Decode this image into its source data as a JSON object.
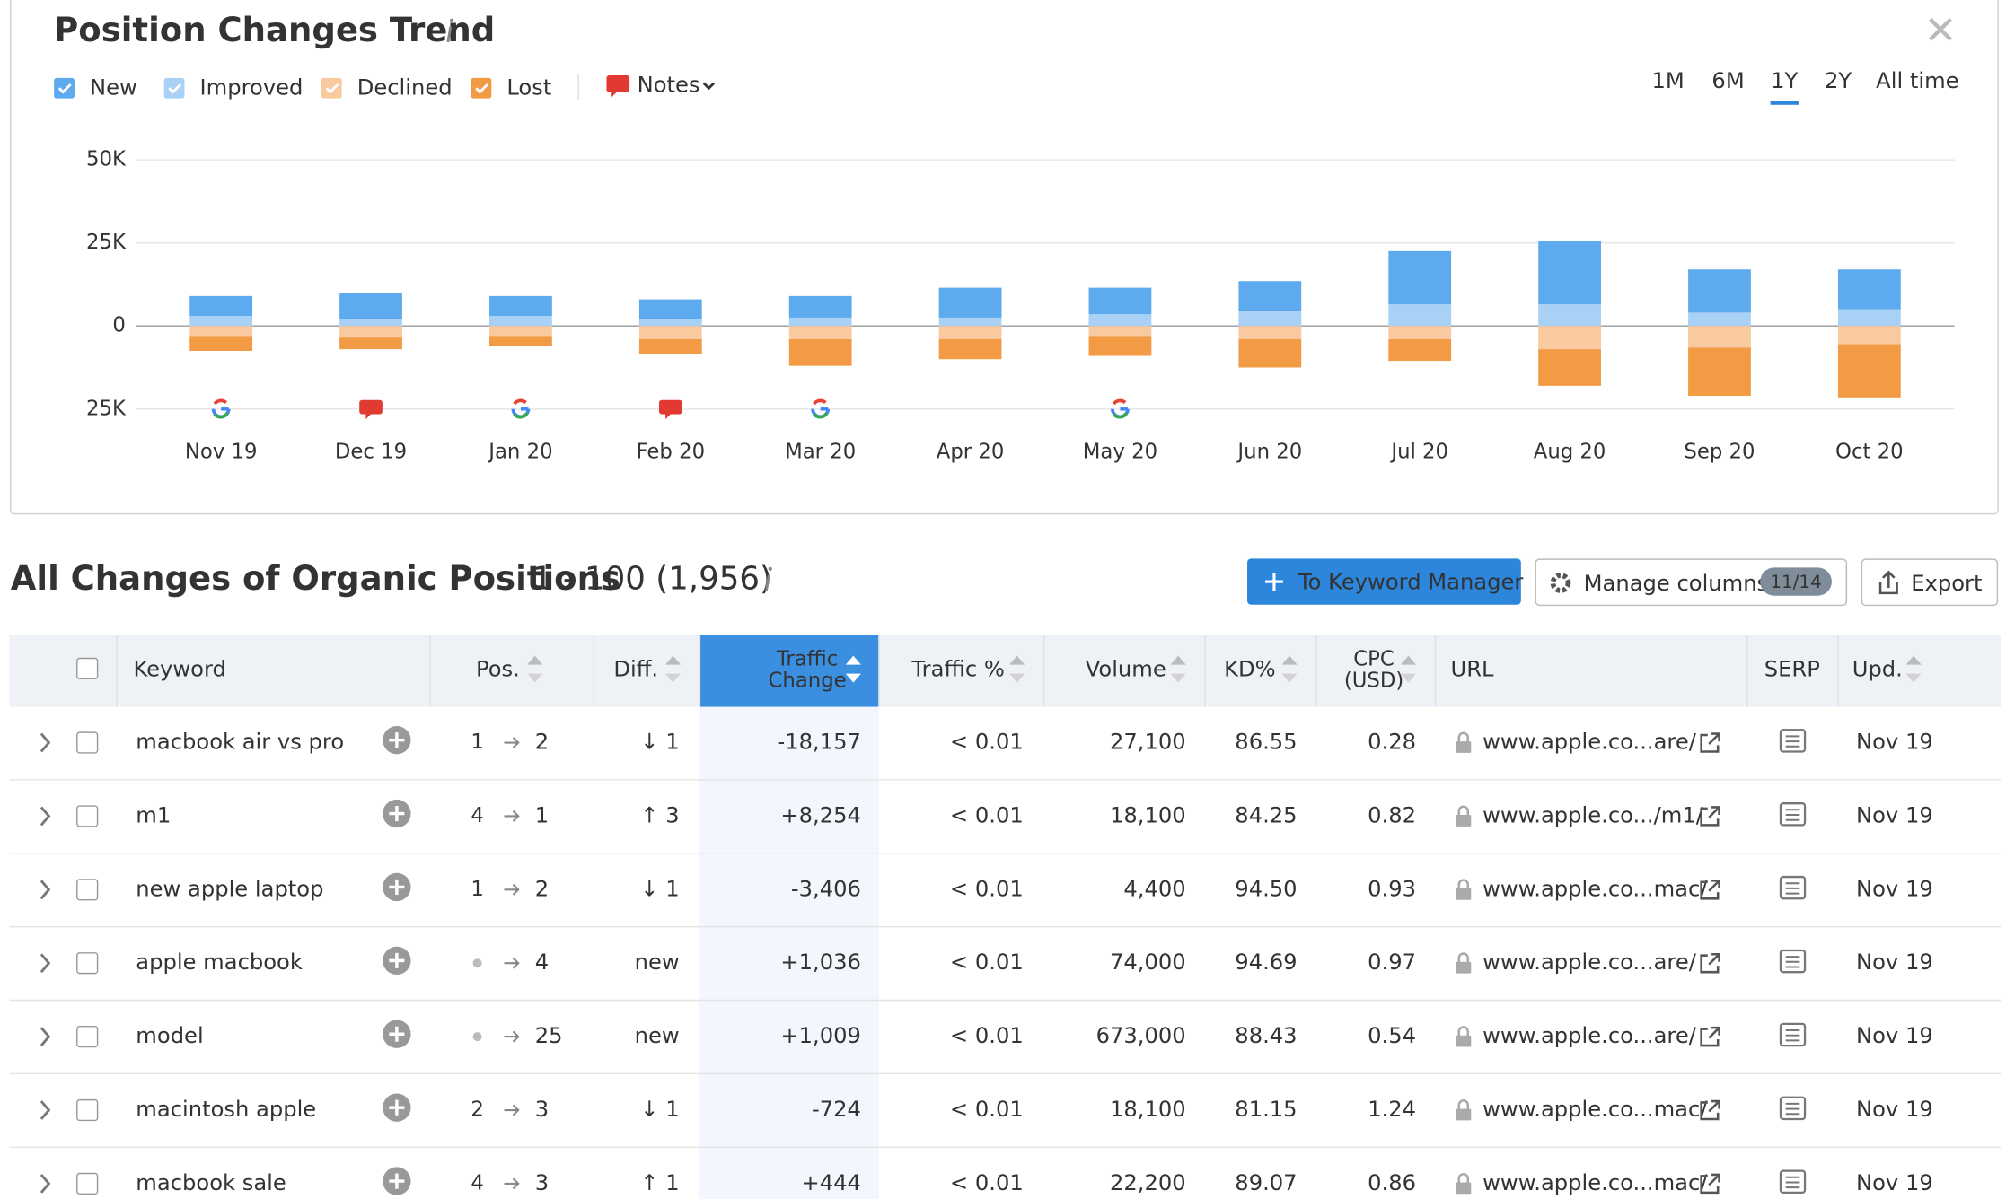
{
  "chart_data": {
    "type": "bar",
    "stacked": true,
    "title": "Position Changes Trend",
    "categories": [
      "Nov 19",
      "Dec 19",
      "Jan 20",
      "Feb 20",
      "Mar 20",
      "Apr 20",
      "May 20",
      "Jun 20",
      "Jul 20",
      "Aug 20",
      "Sep 20",
      "Oct 20"
    ],
    "series": [
      {
        "name": "New",
        "color": "#5eaaee",
        "values": [
          6000,
          8000,
          6000,
          6000,
          6500,
          9000,
          8000,
          9000,
          16000,
          19000,
          13000,
          12000
        ]
      },
      {
        "name": "Improved",
        "color": "#a8d1f5",
        "values": [
          3000,
          2000,
          3000,
          2000,
          2500,
          2500,
          3500,
          4500,
          6500,
          6500,
          4000,
          5000
        ]
      },
      {
        "name": "Declined",
        "color": "#f9c9a0",
        "values": [
          -3000,
          -3500,
          -3000,
          -4000,
          -4000,
          -4000,
          -3000,
          -4000,
          -4000,
          -7000,
          -6500,
          -5500
        ]
      },
      {
        "name": "Lost",
        "color": "#f39a45",
        "values": [
          -4500,
          -3500,
          -3000,
          -4500,
          -8000,
          -6000,
          -6000,
          -8500,
          -6500,
          -11000,
          -14500,
          -16000
        ]
      }
    ],
    "ylim": [
      -25000,
      50000
    ],
    "yticks": [
      {
        "value": 50000,
        "label": "50K"
      },
      {
        "value": 25000,
        "label": "25K"
      },
      0,
      {
        "value": -25000,
        "label": "25K"
      }
    ],
    "grid": true,
    "notes_label": "Notes",
    "ranges": [
      "1M",
      "6M",
      "1Y",
      "2Y",
      "All time"
    ],
    "selected_range": 2
  },
  "table": {
    "title": "All Changes of Organic Positions",
    "count": "1 - 100 (1,956)",
    "buttons": {
      "keyword_manager": "To Keyword Manager",
      "manage_columns": "Manage columns",
      "columns_badge": "11/14",
      "export": "Export"
    },
    "columns": [
      "Keyword",
      "Pos.",
      "Diff.",
      [
        "Traffic",
        "Change"
      ],
      "Traffic %",
      "Volume",
      "KD%",
      [
        "CPC",
        "(USD)"
      ],
      "URL",
      "SERP",
      "Upd."
    ],
    "rows": [
      {
        "keyword": "macbook air vs pro",
        "pos_from": "1",
        "pos_to": "2",
        "diff": "↓ 1",
        "traffic_change": "-18,157",
        "traffic_pct": "< 0.01",
        "volume": "27,100",
        "kd": "86.55",
        "cpc": "0.28",
        "url": "www.apple.co...are/",
        "updated": "Nov 19"
      },
      {
        "keyword": "m1",
        "pos_from": "4",
        "pos_to": "1",
        "diff": "↑ 3",
        "traffic_change": "+8,254",
        "traffic_pct": "< 0.01",
        "volume": "18,100",
        "kd": "84.25",
        "cpc": "0.82",
        "url": "www.apple.co.../m1/",
        "updated": "Nov 19"
      },
      {
        "keyword": "new apple laptop",
        "pos_from": "1",
        "pos_to": "2",
        "diff": "↓ 1",
        "traffic_change": "-3,406",
        "traffic_pct": "< 0.01",
        "volume": "4,400",
        "kd": "94.50",
        "cpc": "0.93",
        "url": "www.apple.co...mac/",
        "updated": "Nov 19"
      },
      {
        "keyword": "apple macbook",
        "pos_from": null,
        "pos_to": "4",
        "diff": "new",
        "traffic_change": "+1,036",
        "traffic_pct": "< 0.01",
        "volume": "74,000",
        "kd": "94.69",
        "cpc": "0.97",
        "url": "www.apple.co...are/",
        "updated": "Nov 19"
      },
      {
        "keyword": "model",
        "pos_from": null,
        "pos_to": "25",
        "diff": "new",
        "traffic_change": "+1,009",
        "traffic_pct": "< 0.01",
        "volume": "673,000",
        "kd": "88.43",
        "cpc": "0.54",
        "url": "www.apple.co...are/",
        "updated": "Nov 19"
      },
      {
        "keyword": "macintosh apple",
        "pos_from": "2",
        "pos_to": "3",
        "diff": "↓ 1",
        "traffic_change": "-724",
        "traffic_pct": "< 0.01",
        "volume": "18,100",
        "kd": "81.15",
        "cpc": "1.24",
        "url": "www.apple.co...mac/",
        "updated": "Nov 19"
      },
      {
        "keyword": "macbook sale",
        "pos_from": "4",
        "pos_to": "3",
        "diff": "↑ 1",
        "traffic_change": "+444",
        "traffic_pct": "< 0.01",
        "volume": "22,200",
        "kd": "89.07",
        "cpc": "0.86",
        "url": "www.apple.co...mac/",
        "updated": "Nov 19"
      }
    ]
  }
}
